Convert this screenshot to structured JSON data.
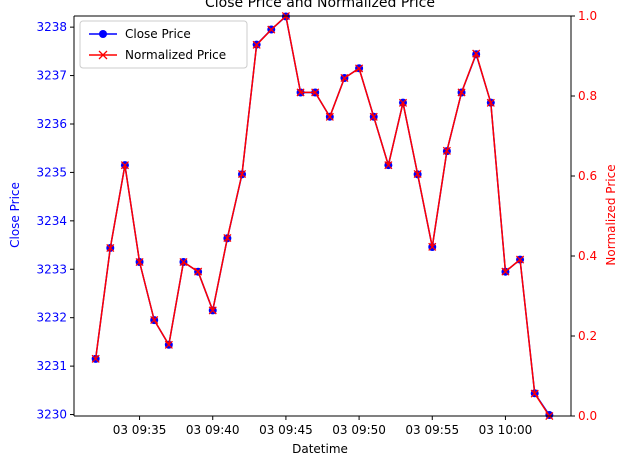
{
  "chart_data": {
    "type": "line",
    "title": "Close Price and Normalized Price",
    "xlabel": "Datetime",
    "ylabel_left": "Close Price",
    "ylabel_right": "Normalized Price",
    "x": [
      "03 09:32",
      "03 09:33",
      "03 09:34",
      "03 09:35",
      "03 09:36",
      "03 09:37",
      "03 09:38",
      "03 09:39",
      "03 09:40",
      "03 09:41",
      "03 09:42",
      "03 09:43",
      "03 09:44",
      "03 09:45",
      "03 09:46",
      "03 09:47",
      "03 09:48",
      "03 09:49",
      "03 09:50",
      "03 09:51",
      "03 09:52",
      "03 09:53",
      "03 09:54",
      "03 09:55",
      "03 09:56",
      "03 09:57",
      "03 09:58",
      "03 09:59",
      "03 10:00",
      "03 10:01",
      "03 10:02",
      "03 10:03"
    ],
    "x_ticks": [
      "03 09:35",
      "03 09:40",
      "03 09:45",
      "03 09:50",
      "03 09:55",
      "03 10:00"
    ],
    "y_left_ticks": [
      "3230",
      "3231",
      "3232",
      "3233",
      "3234",
      "3235",
      "3236",
      "3237",
      "3238"
    ],
    "y_right_ticks": [
      "0.0",
      "0.2",
      "0.4",
      "0.6",
      "0.8",
      "1.0"
    ],
    "ylim_left": [
      3229.97,
      3238.23
    ],
    "ylim_right": [
      0,
      1
    ],
    "series": [
      {
        "name": "Close Price",
        "axis": "left",
        "color": "#0000ff",
        "marker": "circle",
        "values": [
          3231.15,
          3233.44,
          3235.15,
          3233.15,
          3231.95,
          3231.44,
          3233.15,
          3232.95,
          3232.15,
          3233.64,
          3234.96,
          3237.64,
          3237.95,
          3238.22,
          3236.65,
          3236.65,
          3236.15,
          3236.95,
          3237.15,
          3236.15,
          3235.15,
          3236.44,
          3234.96,
          3233.46,
          3235.44,
          3236.65,
          3237.44,
          3236.44,
          3232.95,
          3233.2,
          3230.44,
          3229.99
        ]
      },
      {
        "name": "Normalized Price",
        "axis": "right",
        "color": "#ff0000",
        "marker": "x",
        "values": [
          0.143,
          0.42,
          0.627,
          0.385,
          0.24,
          0.178,
          0.385,
          0.361,
          0.264,
          0.445,
          0.605,
          0.928,
          0.966,
          1.0,
          0.809,
          0.809,
          0.748,
          0.845,
          0.869,
          0.748,
          0.627,
          0.783,
          0.605,
          0.423,
          0.663,
          0.809,
          0.906,
          0.783,
          0.361,
          0.391,
          0.056,
          0.0
        ]
      }
    ],
    "legend": {
      "position": "top-left",
      "entries": [
        "Close Price",
        "Normalized Price"
      ]
    },
    "colors": {
      "left_axis": "#0000ff",
      "right_axis": "#ff0000",
      "axes": "#000000"
    },
    "grid": false
  }
}
